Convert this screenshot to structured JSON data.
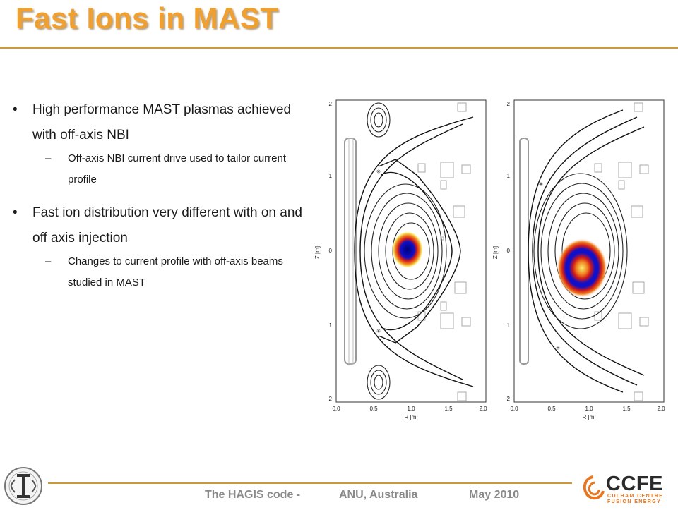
{
  "slide": {
    "title": "Fast Ions in MAST",
    "bullets": [
      {
        "text": "High performance MAST plasmas achieved with off-axis NBI",
        "sub": "Off-axis NBI current drive used to tailor current profile"
      },
      {
        "text": "Fast ion distribution very different with on and off axis injection",
        "sub": "Changes to current profile with off-axis beams studied in MAST"
      }
    ],
    "bullet_symbol": "•",
    "dash_symbol": "–"
  },
  "footer": {
    "code": "The HAGIS code -",
    "place": "ANU, Australia",
    "date": "May 2010"
  },
  "logo": {
    "name": "CCFE",
    "sub_line1": "CULHAM CENTRE",
    "sub_line2": "FUSION ENERGY",
    "color": "#e87722"
  },
  "plots": {
    "xlabel": "R [m]",
    "ylabel": "Z [m]",
    "x_ticks": [
      "0.0",
      "0.5",
      "1.0",
      "1.5",
      "2.0"
    ],
    "y_ticks": [
      "2",
      "1",
      "0",
      "1",
      "2"
    ]
  }
}
